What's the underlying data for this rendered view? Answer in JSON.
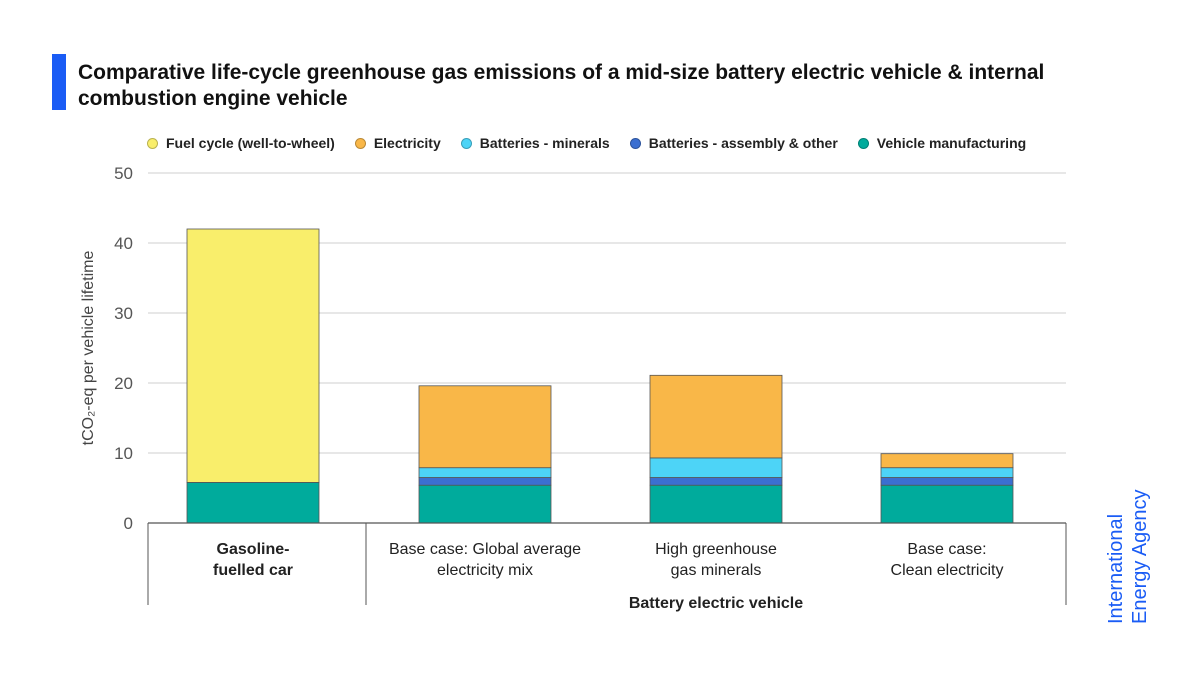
{
  "title": "Comparative life-cycle greenhouse gas emissions of a mid-size battery electric vehicle & internal combustion engine vehicle",
  "logo": {
    "line1": "International",
    "line2": "Energy Agency"
  },
  "colors": {
    "accent": "#1a5cf5",
    "fuel": "#f9ee6b",
    "electricity": "#f9b748",
    "battery_minerals": "#4dd4f7",
    "battery_assembly": "#3b6fd1",
    "vehicle_manufacturing": "#00ab9c"
  },
  "chart_data": {
    "type": "bar",
    "stacked": true,
    "title": "Comparative life-cycle greenhouse gas emissions of a mid-size battery electric vehicle & internal combustion engine vehicle",
    "ylabel": "tCO₂-eq per vehicle lifetime",
    "ylim": [
      0,
      50
    ],
    "yticks": [
      "0",
      "10",
      "20",
      "30",
      "40",
      "50"
    ],
    "grid": true,
    "legend_position": "top",
    "categories": [
      "Gasoline-fuelled car",
      "Base case: Global average electricity mix",
      "High greenhouse gas minerals",
      "Base case: Clean electricity"
    ],
    "category_groups": [
      {
        "label": "",
        "members": [
          0
        ]
      },
      {
        "label": "Battery electric vehicle",
        "members": [
          1,
          2,
          3
        ]
      }
    ],
    "series": [
      {
        "name": "Vehicle manufacturing",
        "color": "#00ab9c",
        "values": [
          5.8,
          5.4,
          5.4,
          5.4
        ]
      },
      {
        "name": "Batteries - assembly & other",
        "color": "#3b6fd1",
        "values": [
          0,
          1.1,
          1.1,
          1.1
        ]
      },
      {
        "name": "Batteries - minerals",
        "color": "#4dd4f7",
        "values": [
          0,
          1.4,
          2.8,
          1.4
        ]
      },
      {
        "name": "Electricity",
        "color": "#f9b748",
        "values": [
          0,
          11.7,
          11.8,
          2.0
        ]
      },
      {
        "name": "Fuel cycle (well-to-wheel)",
        "color": "#f9ee6b",
        "values": [
          36.2,
          0,
          0,
          0
        ]
      }
    ],
    "legend_order": [
      "Fuel cycle (well-to-wheel)",
      "Electricity",
      "Batteries - minerals",
      "Batteries - assembly & other",
      "Vehicle manufacturing"
    ],
    "category_labels": [
      {
        "lines": [
          "Gasoline-",
          "fuelled car"
        ],
        "bold": true
      },
      {
        "lines": [
          "Base case: Global average",
          "electricity mix"
        ],
        "bold": false
      },
      {
        "lines": [
          "High greenhouse",
          "gas minerals"
        ],
        "bold": false
      },
      {
        "lines": [
          "Base case:",
          "Clean electricity"
        ],
        "bold": false
      }
    ]
  }
}
